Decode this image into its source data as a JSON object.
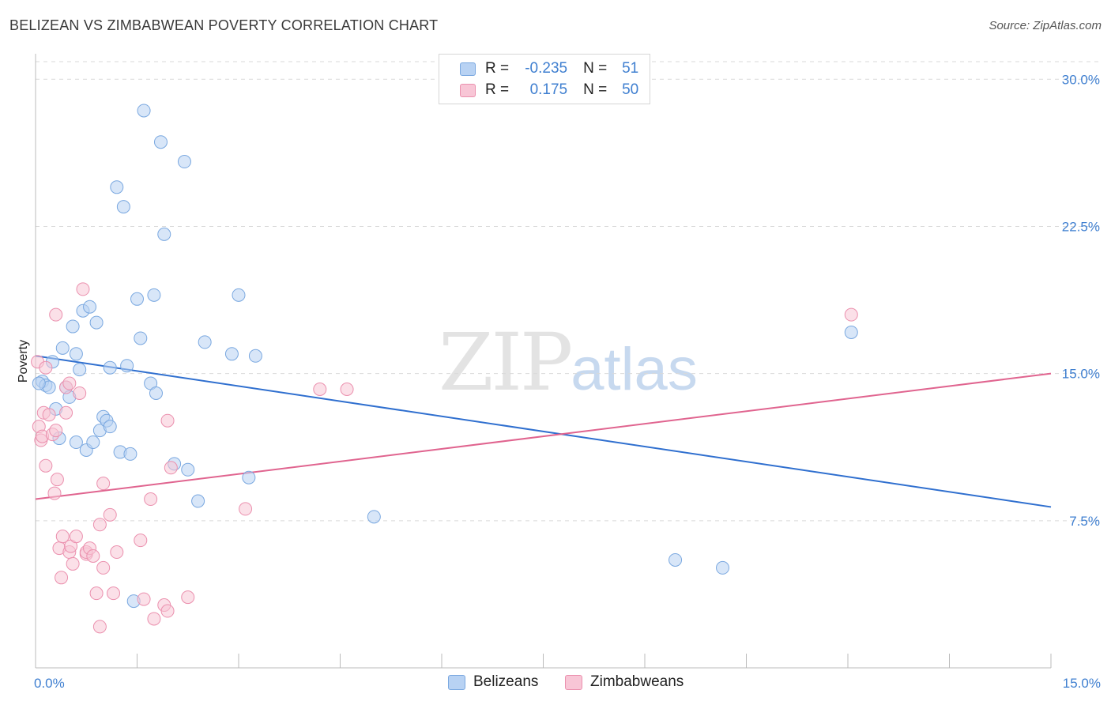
{
  "title": "BELIZEAN VS ZIMBABWEAN POVERTY CORRELATION CHART",
  "source": "Source: ZipAtlas.com",
  "watermark": {
    "zip": "ZIP",
    "atlas": "atlas"
  },
  "legend": {
    "rows": [
      {
        "r_label": "R =",
        "r_value": "-0.235",
        "n_label": "N =",
        "n_value": "51"
      },
      {
        "r_label": "R =",
        "r_value": "0.175",
        "n_label": "N =",
        "n_value": "50"
      }
    ]
  },
  "bottom_legend": [
    "Belizeans",
    "Zimbabweans"
  ],
  "colors": {
    "blue_fill": "#b8d2f3",
    "blue_stroke": "#7aa8e0",
    "blue_line": "#2f6fcf",
    "pink_fill": "#f8c6d6",
    "pink_stroke": "#eb90ae",
    "pink_line": "#e0648f",
    "tick_text": "#3f7fd0",
    "grid": "#d9d9d9"
  },
  "chart_data": {
    "type": "scatter",
    "title": "BELIZEAN VS ZIMBABWEAN POVERTY CORRELATION CHART",
    "xlabel": "",
    "ylabel": "Poverty",
    "xlim": [
      0,
      15
    ],
    "ylim": [
      0,
      31.3
    ],
    "x_tick_labels": [
      "0.0%",
      "15.0%"
    ],
    "y_ticks": [
      7.5,
      15.0,
      22.5,
      30.0
    ],
    "y_tick_labels": [
      "7.5%",
      "15.0%",
      "22.5%",
      "30.0%"
    ],
    "grid": true,
    "series": [
      {
        "name": "Belizeans",
        "r": -0.235,
        "n": 51,
        "trend": {
          "x": [
            0,
            15
          ],
          "y": [
            15.9,
            8.2
          ]
        },
        "points": [
          [
            0.1,
            14.6
          ],
          [
            0.15,
            14.4
          ],
          [
            0.2,
            14.3
          ],
          [
            0.25,
            15.6
          ],
          [
            0.3,
            13.2
          ],
          [
            0.35,
            11.7
          ],
          [
            0.4,
            16.3
          ],
          [
            0.45,
            14.3
          ],
          [
            0.5,
            13.8
          ],
          [
            0.55,
            17.4
          ],
          [
            0.6,
            11.5
          ],
          [
            0.6,
            16.0
          ],
          [
            0.65,
            15.2
          ],
          [
            0.7,
            18.2
          ],
          [
            0.75,
            11.1
          ],
          [
            0.8,
            18.4
          ],
          [
            0.85,
            11.5
          ],
          [
            0.9,
            17.6
          ],
          [
            0.95,
            12.1
          ],
          [
            1.0,
            12.8
          ],
          [
            1.05,
            12.6
          ],
          [
            1.1,
            12.3
          ],
          [
            1.1,
            15.3
          ],
          [
            1.2,
            24.5
          ],
          [
            1.25,
            11.0
          ],
          [
            1.3,
            23.5
          ],
          [
            1.35,
            15.4
          ],
          [
            1.4,
            10.9
          ],
          [
            1.45,
            3.4
          ],
          [
            1.5,
            18.8
          ],
          [
            1.55,
            16.8
          ],
          [
            1.6,
            28.4
          ],
          [
            1.7,
            14.5
          ],
          [
            1.75,
            19.0
          ],
          [
            1.78,
            14.0
          ],
          [
            1.85,
            26.8
          ],
          [
            1.9,
            22.1
          ],
          [
            2.05,
            10.4
          ],
          [
            2.2,
            25.8
          ],
          [
            2.25,
            10.1
          ],
          [
            2.4,
            8.5
          ],
          [
            2.5,
            16.6
          ],
          [
            2.9,
            16.0
          ],
          [
            3.0,
            19.0
          ],
          [
            3.15,
            9.7
          ],
          [
            3.25,
            15.9
          ],
          [
            5.0,
            7.7
          ],
          [
            9.45,
            5.5
          ],
          [
            10.15,
            5.1
          ],
          [
            12.05,
            17.1
          ],
          [
            0.05,
            14.5
          ]
        ]
      },
      {
        "name": "Zimbabweans",
        "r": 0.175,
        "n": 50,
        "trend": {
          "x": [
            0,
            15
          ],
          "y": [
            8.6,
            15.0
          ]
        },
        "points": [
          [
            0.03,
            15.6
          ],
          [
            0.05,
            12.3
          ],
          [
            0.08,
            11.6
          ],
          [
            0.1,
            11.8
          ],
          [
            0.12,
            13.0
          ],
          [
            0.15,
            10.3
          ],
          [
            0.2,
            12.9
          ],
          [
            0.25,
            11.9
          ],
          [
            0.28,
            8.9
          ],
          [
            0.3,
            12.1
          ],
          [
            0.3,
            18.0
          ],
          [
            0.32,
            9.6
          ],
          [
            0.35,
            6.1
          ],
          [
            0.38,
            4.6
          ],
          [
            0.4,
            6.7
          ],
          [
            0.45,
            13.0
          ],
          [
            0.45,
            14.3
          ],
          [
            0.5,
            14.5
          ],
          [
            0.5,
            5.9
          ],
          [
            0.52,
            6.2
          ],
          [
            0.55,
            5.3
          ],
          [
            0.6,
            6.7
          ],
          [
            0.65,
            14.0
          ],
          [
            0.7,
            19.3
          ],
          [
            0.75,
            5.8
          ],
          [
            0.75,
            5.9
          ],
          [
            0.8,
            6.1
          ],
          [
            0.85,
            5.7
          ],
          [
            0.9,
            3.8
          ],
          [
            0.95,
            7.3
          ],
          [
            0.95,
            2.1
          ],
          [
            1.0,
            5.1
          ],
          [
            1.0,
            9.4
          ],
          [
            1.1,
            7.8
          ],
          [
            1.15,
            3.8
          ],
          [
            1.2,
            5.9
          ],
          [
            1.55,
            6.5
          ],
          [
            1.6,
            3.5
          ],
          [
            1.7,
            8.6
          ],
          [
            1.75,
            2.5
          ],
          [
            1.9,
            3.2
          ],
          [
            1.95,
            2.9
          ],
          [
            1.95,
            12.6
          ],
          [
            2.0,
            10.2
          ],
          [
            2.25,
            3.6
          ],
          [
            3.1,
            8.1
          ],
          [
            4.2,
            14.2
          ],
          [
            4.6,
            14.2
          ],
          [
            12.05,
            18.0
          ],
          [
            0.15,
            15.3
          ]
        ]
      }
    ]
  }
}
